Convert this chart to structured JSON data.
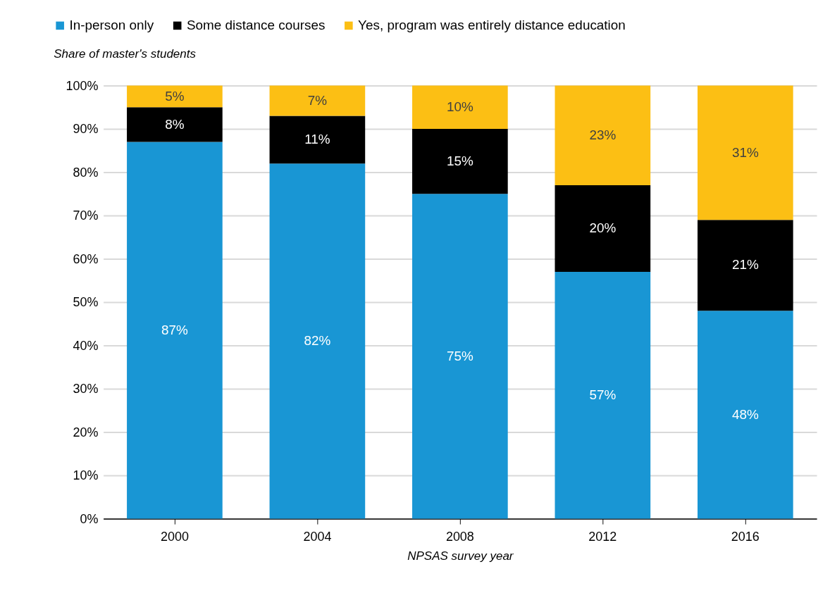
{
  "chart_data": {
    "type": "bar",
    "stacked": true,
    "categories": [
      "2000",
      "2004",
      "2008",
      "2012",
      "2016"
    ],
    "series": [
      {
        "name": "In-person only",
        "color": "#1996d4",
        "values": [
          87,
          82,
          75,
          57,
          48
        ],
        "value_labels": [
          "87%",
          "82%",
          "75%",
          "57%",
          "48%"
        ]
      },
      {
        "name": "Some distance courses",
        "color": "#000000",
        "values": [
          8,
          11,
          15,
          20,
          21
        ],
        "value_labels": [
          "8%",
          "11%",
          "15%",
          "20%",
          "21%"
        ]
      },
      {
        "name": "Yes, program was entirely distance education",
        "color": "#fcbf14",
        "values": [
          5,
          7,
          10,
          23,
          31
        ],
        "value_labels": [
          "5%",
          "7%",
          "10%",
          "23%",
          "31%"
        ]
      }
    ],
    "ylabel": "Share of master's students",
    "xlabel": "NPSAS survey year",
    "ylim": [
      0,
      100
    ],
    "yticks": [
      {
        "value": 0,
        "label": "0%"
      },
      {
        "value": 10,
        "label": "10%"
      },
      {
        "value": 20,
        "label": "20%"
      },
      {
        "value": 30,
        "label": "30%"
      },
      {
        "value": 40,
        "label": "40%"
      },
      {
        "value": 50,
        "label": "50%"
      },
      {
        "value": 60,
        "label": "60%"
      },
      {
        "value": 70,
        "label": "70%"
      },
      {
        "value": 80,
        "label": "80%"
      },
      {
        "value": 90,
        "label": "90%"
      },
      {
        "value": 100,
        "label": "100%"
      }
    ],
    "grid": "y",
    "legend": "top left"
  }
}
